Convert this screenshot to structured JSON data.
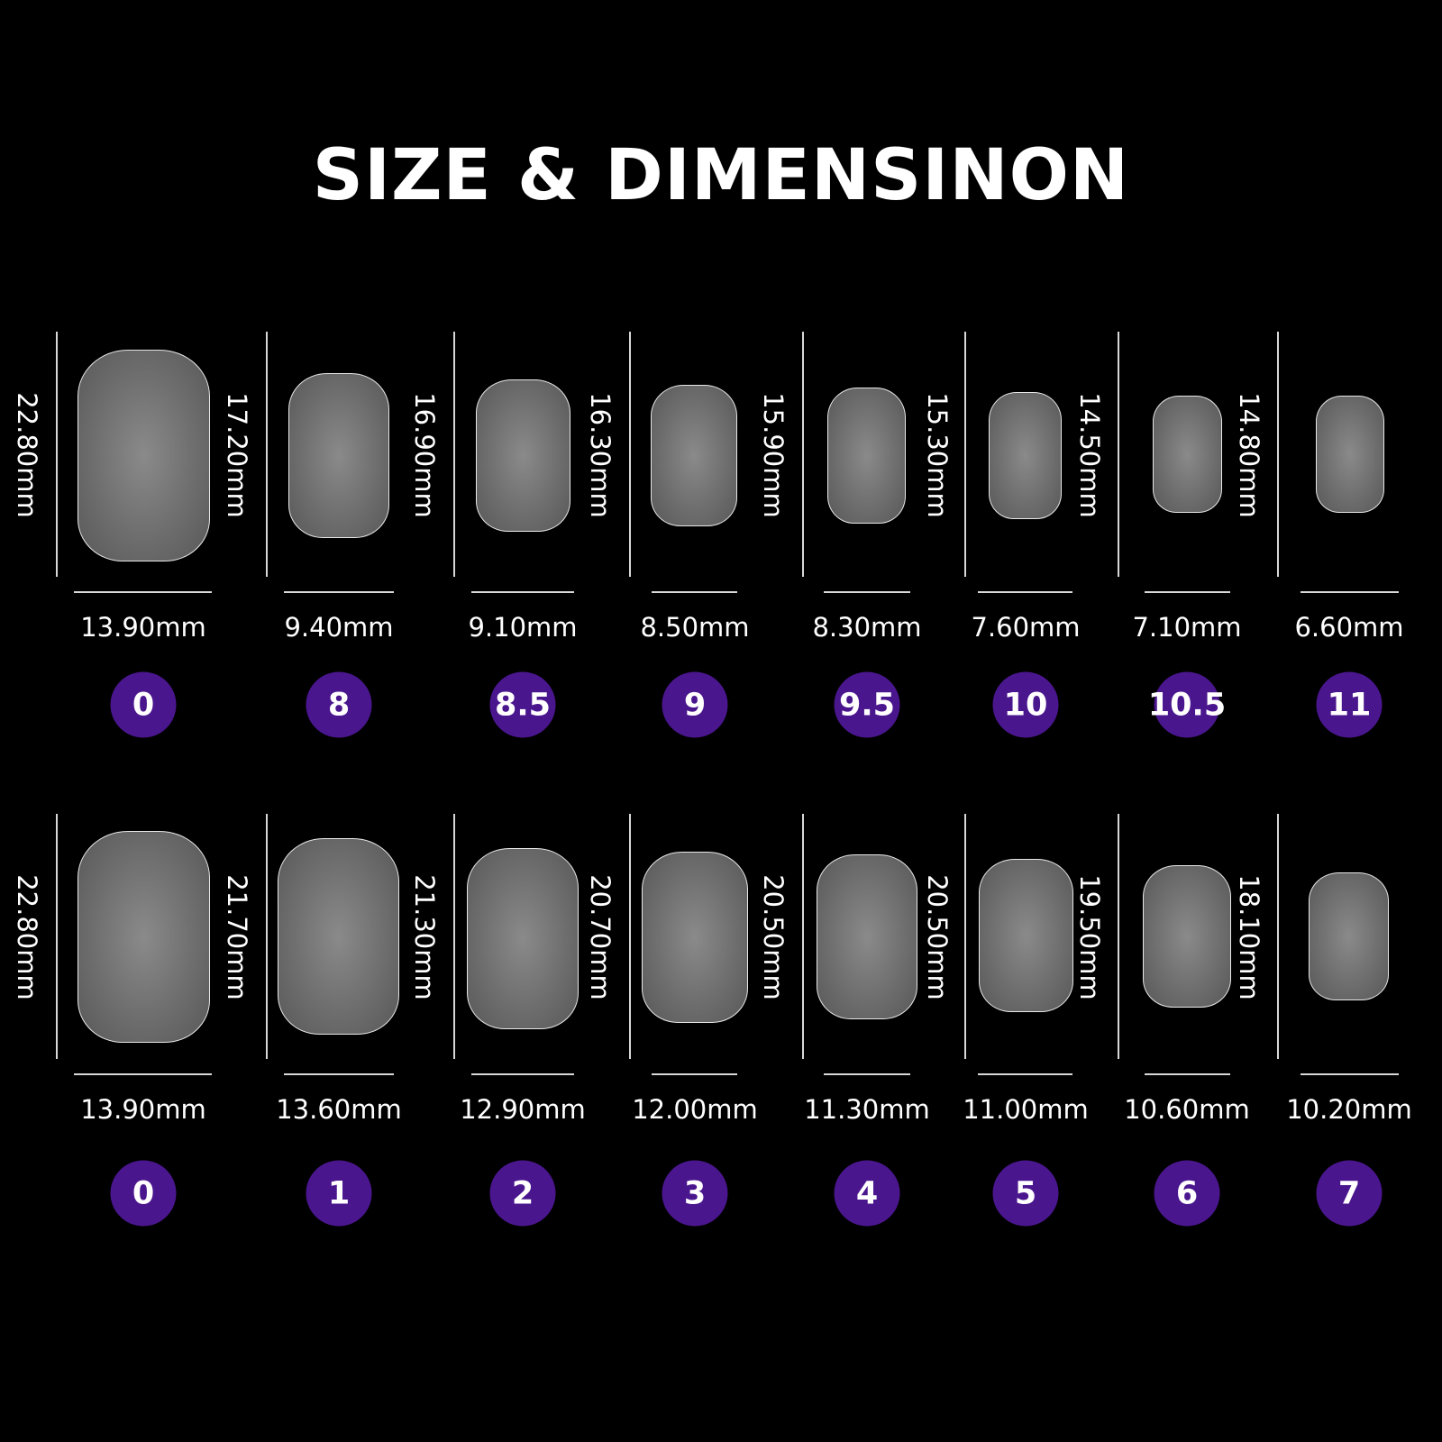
{
  "title": "SIZE & DIMENSINON",
  "colors": {
    "background": "#000000",
    "badge": "#4a168e",
    "text": "#ffffff"
  },
  "rows": [
    {
      "items": [
        {
          "size": "0",
          "width": "13.90mm",
          "length": "22.80mm"
        },
        {
          "size": "8",
          "width": "9.40mm",
          "length": "17.20mm"
        },
        {
          "size": "8.5",
          "width": "9.10mm",
          "length": "16.90mm"
        },
        {
          "size": "9",
          "width": "8.50mm",
          "length": "16.30mm"
        },
        {
          "size": "9.5",
          "width": "8.30mm",
          "length": "15.90mm"
        },
        {
          "size": "10",
          "width": "7.60mm",
          "length": "15.30mm"
        },
        {
          "size": "10.5",
          "width": "7.10mm",
          "length": "14.50mm"
        },
        {
          "size": "11",
          "width": "6.60mm",
          "length": "14.80mm"
        }
      ]
    },
    {
      "items": [
        {
          "size": "0",
          "width": "13.90mm",
          "length": "22.80mm"
        },
        {
          "size": "1",
          "width": "13.60mm",
          "length": "21.70mm"
        },
        {
          "size": "2",
          "width": "12.90mm",
          "length": "21.30mm"
        },
        {
          "size": "3",
          "width": "12.00mm",
          "length": "20.70mm"
        },
        {
          "size": "4",
          "width": "11.30mm",
          "length": "20.50mm"
        },
        {
          "size": "5",
          "width": "11.00mm",
          "length": "20.50mm"
        },
        {
          "size": "6",
          "width": "10.60mm",
          "length": "19.50mm"
        },
        {
          "size": "7",
          "width": "10.20mm",
          "length": "18.10mm"
        }
      ]
    }
  ]
}
